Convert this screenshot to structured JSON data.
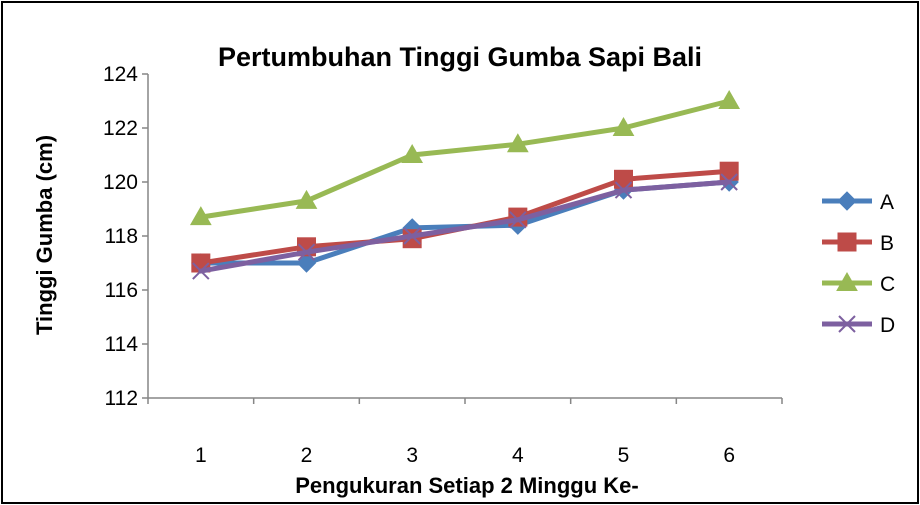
{
  "chart_data": {
    "type": "line",
    "title": "Pertumbuhan Tinggi Gumba Sapi Bali",
    "xlabel": "Pengukuran Setiap 2 Minggu Ke-",
    "ylabel": "Tinggi Gumba (cm)",
    "categories": [
      "1",
      "2",
      "3",
      "4",
      "5",
      "6"
    ],
    "ylim": [
      112,
      124
    ],
    "yticks": [
      "112",
      "114",
      "116",
      "118",
      "120",
      "122",
      "124"
    ],
    "grid": false,
    "legend_position": "right",
    "series": [
      {
        "name": "A",
        "color": "#4a7ebb",
        "marker": "diamond",
        "values": [
          117.0,
          117.0,
          118.3,
          118.4,
          119.7,
          120.0
        ]
      },
      {
        "name": "B",
        "color": "#be4b48",
        "marker": "square",
        "values": [
          117.0,
          117.6,
          117.9,
          118.7,
          120.1,
          120.4
        ]
      },
      {
        "name": "C",
        "color": "#98b954",
        "marker": "triangle",
        "values": [
          118.7,
          119.3,
          121.0,
          121.4,
          122.0,
          123.0
        ]
      },
      {
        "name": "D",
        "color": "#7d60a0",
        "marker": "x",
        "values": [
          116.7,
          117.4,
          118.0,
          118.6,
          119.7,
          120.0
        ]
      }
    ]
  }
}
